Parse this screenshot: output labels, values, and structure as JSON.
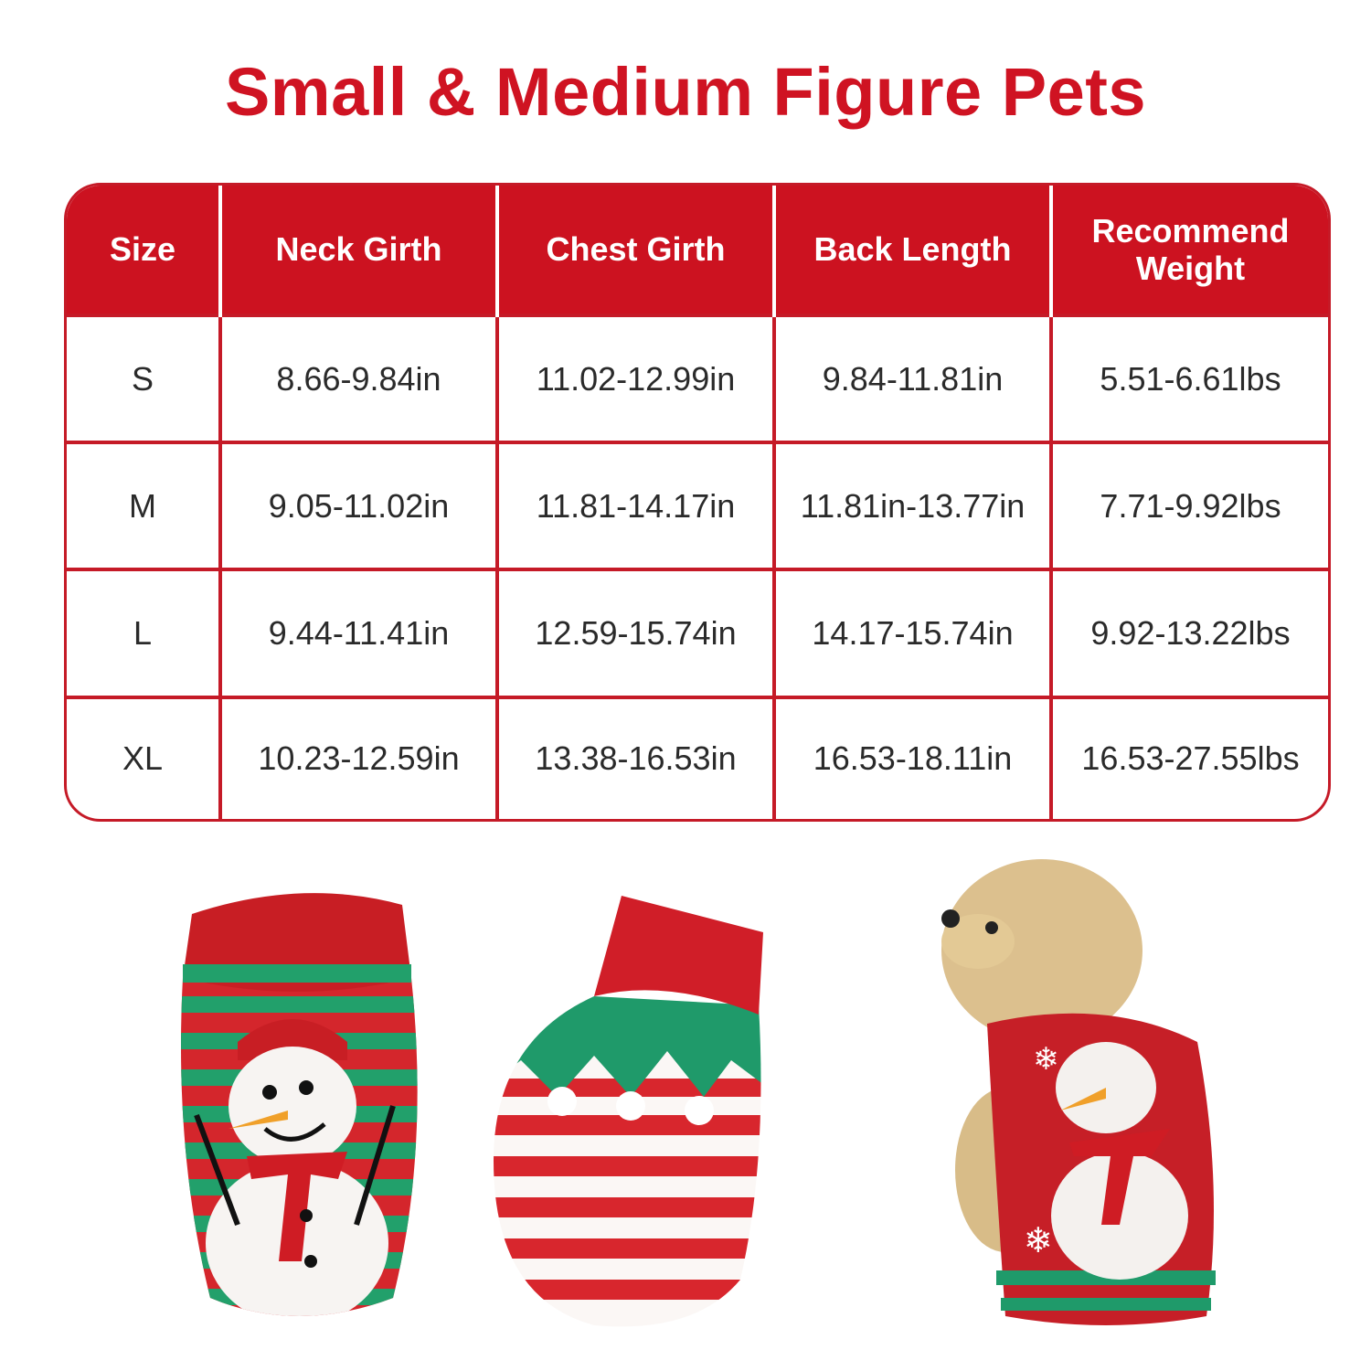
{
  "title": "Small & Medium Figure Pets",
  "colors": {
    "accent": "#cc1220",
    "border": "#c51a27",
    "text": "#2a2a2a",
    "sweater_green": "#1f9a6a"
  },
  "size_table": {
    "headers": [
      "Size",
      "Neck Girth",
      "Chest Girth",
      "Back Length",
      "Recommend Weight"
    ],
    "rows": [
      [
        "S",
        "8.66-9.84in",
        "11.02-12.99in",
        "9.84-11.81in",
        "5.51-6.61lbs"
      ],
      [
        "M",
        "9.05-11.02in",
        "11.81-14.17in",
        "11.81in-13.77in",
        "7.71-9.92lbs"
      ],
      [
        "L",
        "9.44-11.41in",
        "12.59-15.74in",
        "14.17-15.74in",
        "9.92-13.22lbs"
      ],
      [
        "XL",
        "10.23-12.59in",
        "13.38-16.53in",
        "16.53-18.11in",
        "16.53-27.55lbs"
      ]
    ]
  },
  "images": [
    "snowman-sweater-front",
    "striped-elf-sweater-back",
    "poodle-wearing-sweater"
  ]
}
